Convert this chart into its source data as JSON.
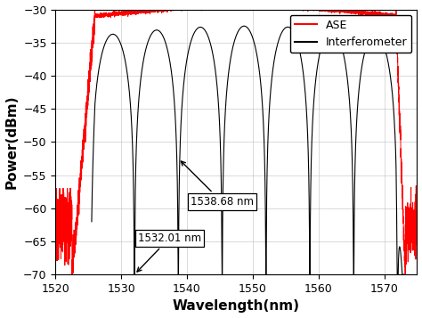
{
  "xlabel": "Wavelength(nm)",
  "ylabel": "Power(dBm)",
  "xlim": [
    1520,
    1575
  ],
  "ylim": [
    -70,
    -30
  ],
  "xticks": [
    1520,
    1530,
    1540,
    1550,
    1560,
    1570
  ],
  "yticks": [
    -70,
    -65,
    -60,
    -55,
    -50,
    -45,
    -40,
    -35,
    -30
  ],
  "ase_color": "#ff0000",
  "interferometer_color": "#000000",
  "legend_labels": [
    "ASE",
    "Interferometer"
  ],
  "annotation1_text": "1532.01 nm",
  "annotation2_text": "1538.68 nm",
  "figsize": [
    4.74,
    3.57
  ],
  "dpi": 100,
  "ase_rise_start": 1522.5,
  "ase_rise_end": 1526.0,
  "ase_fall_start": 1571.8,
  "ase_fall_end": 1573.2,
  "ase_flat_level": -31.0,
  "ase_noise_low": -62.0,
  "fringe_period": 6.67,
  "fringe_start": 1525.5,
  "fringe_end": 1573.0,
  "int_peak_level": -34.0,
  "noise_floor_dbm": -70.0
}
